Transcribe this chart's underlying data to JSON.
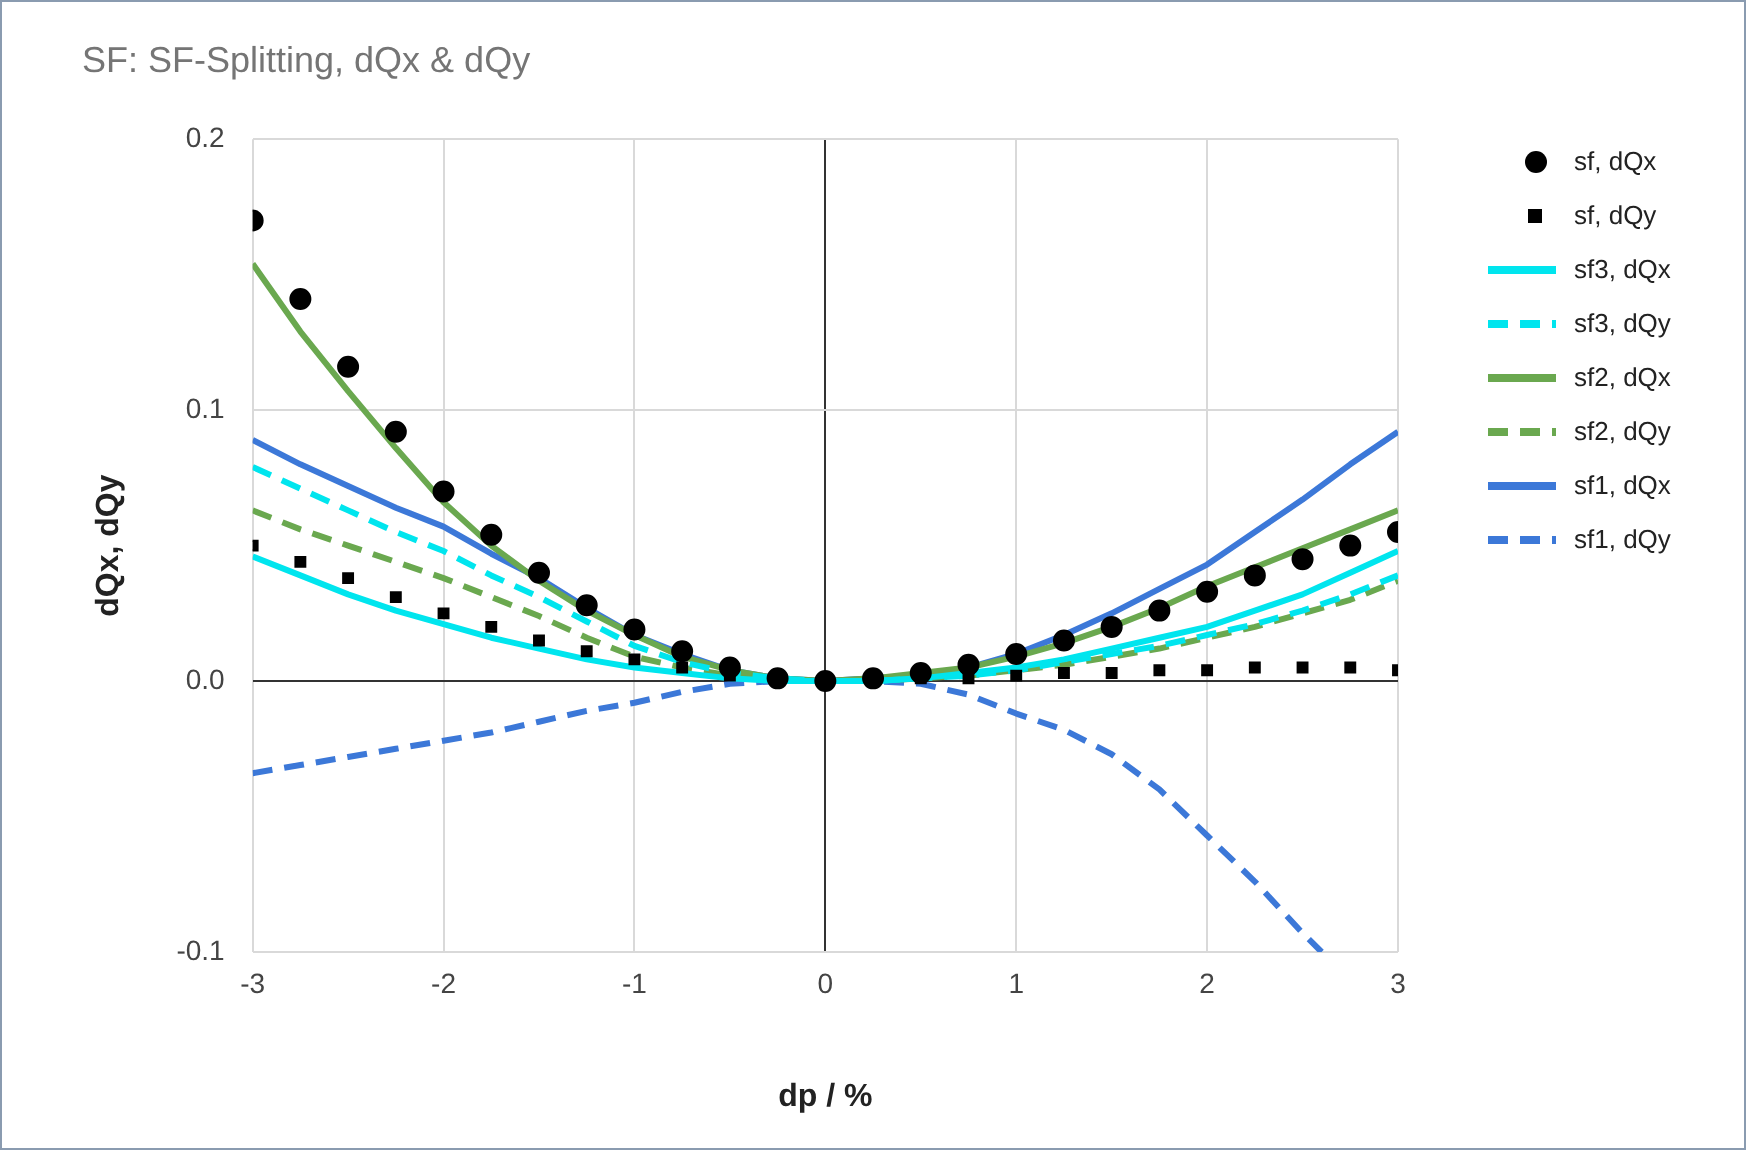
{
  "chart_data": {
    "type": "line",
    "title": "SF: SF-Splitting, dQx & dQy",
    "xlabel": "dp / %",
    "ylabel": "dQx, dQy",
    "x": [
      -3,
      -2.75,
      -2.5,
      -2.25,
      -2,
      -1.75,
      -1.5,
      -1.25,
      -1,
      -0.75,
      -0.5,
      -0.25,
      0,
      0.25,
      0.5,
      0.75,
      1,
      1.25,
      1.5,
      1.75,
      2,
      2.25,
      2.5,
      2.75,
      3
    ],
    "series": [
      {
        "name": "sf, dQx",
        "type": "scatter",
        "marker": "circle",
        "color": "#000000",
        "values": [
          0.17,
          0.141,
          0.116,
          0.092,
          0.07,
          0.054,
          0.04,
          0.028,
          0.019,
          0.011,
          0.005,
          0.001,
          0,
          0.001,
          0.003,
          0.006,
          0.01,
          0.015,
          0.02,
          0.026,
          0.033,
          0.039,
          0.045,
          0.05,
          0.055
        ]
      },
      {
        "name": "sf, dQy",
        "type": "scatter",
        "marker": "square",
        "color": "#000000",
        "values": [
          0.05,
          0.044,
          0.038,
          0.031,
          0.025,
          0.02,
          0.015,
          0.011,
          0.008,
          0.005,
          0.002,
          null,
          null,
          null,
          0.001,
          0.001,
          0.002,
          0.003,
          0.003,
          0.004,
          0.004,
          0.005,
          0.005,
          0.005,
          0.004
        ]
      },
      {
        "name": "sf3, dQx",
        "color": "#00e5ee",
        "line_style": "solid",
        "values": [
          0.046,
          0.039,
          0.032,
          0.026,
          0.021,
          0.016,
          0.012,
          0.008,
          0.005,
          0.003,
          0.001,
          0,
          0,
          0,
          0.001,
          0.003,
          0.005,
          0.008,
          0.012,
          0.016,
          0.02,
          0.026,
          0.032,
          0.04,
          0.048
        ]
      },
      {
        "name": "sf3, dQy",
        "color": "#00e5ee",
        "line_style": "dashed",
        "values": [
          0.079,
          0.071,
          0.063,
          0.055,
          0.048,
          0.039,
          0.031,
          0.022,
          0.013,
          0.007,
          0.003,
          0.001,
          0,
          0,
          0.001,
          0.002,
          0.004,
          0.007,
          0.01,
          0.013,
          0.017,
          0.021,
          0.026,
          0.032,
          0.039
        ]
      },
      {
        "name": "sf2, dQx",
        "color": "#6aa84f",
        "line_style": "solid",
        "values": [
          0.154,
          0.129,
          0.107,
          0.086,
          0.066,
          0.05,
          0.037,
          0.026,
          0.017,
          0.009,
          0.004,
          0.001,
          0,
          0.001,
          0.003,
          0.005,
          0.009,
          0.014,
          0.02,
          0.027,
          0.035,
          0.042,
          0.049,
          0.056,
          0.063
        ]
      },
      {
        "name": "sf2, dQy",
        "color": "#6aa84f",
        "line_style": "dashed",
        "values": [
          0.063,
          0.056,
          0.05,
          0.044,
          0.038,
          0.031,
          0.024,
          0.016,
          0.009,
          0.005,
          0.002,
          0,
          0,
          0,
          0.001,
          0.002,
          0.004,
          0.006,
          0.009,
          0.012,
          0.016,
          0.02,
          0.025,
          0.03,
          0.037
        ]
      },
      {
        "name": "sf1, dQx",
        "color": "#3c78d8",
        "line_style": "solid",
        "values": [
          0.089,
          0.08,
          0.072,
          0.064,
          0.057,
          0.047,
          0.038,
          0.027,
          0.017,
          0.01,
          0.004,
          0.001,
          0,
          0.001,
          0.002,
          0.005,
          0.01,
          0.017,
          0.025,
          0.034,
          0.043,
          0.055,
          0.067,
          0.08,
          0.092
        ]
      },
      {
        "name": "sf1, dQy",
        "color": "#3c78d8",
        "line_style": "dashed",
        "x": [
          -3,
          -2.75,
          -2.5,
          -2.25,
          -2,
          -1.75,
          -1.5,
          -1.25,
          -1,
          -0.75,
          -0.5,
          -0.25,
          0,
          0.25,
          0.5,
          0.75,
          1,
          1.25,
          1.5,
          1.75,
          2,
          2.25,
          2.5,
          2.6
        ],
        "values": [
          -0.034,
          -0.031,
          -0.028,
          -0.025,
          -0.022,
          -0.019,
          -0.015,
          -0.011,
          -0.008,
          -0.004,
          -0.001,
          0,
          0,
          0,
          -0.001,
          -0.005,
          -0.012,
          -0.018,
          -0.027,
          -0.04,
          -0.057,
          -0.074,
          -0.093,
          -0.1
        ]
      }
    ],
    "xlim": [
      -3,
      3
    ],
    "xticks": [
      -3,
      -2,
      -1,
      0,
      1,
      2,
      3
    ],
    "ylim": [
      -0.1,
      0.2
    ],
    "yticks": [
      -0.1,
      {
        "value": 0,
        "label": "0.0"
      },
      0.1,
      0.2
    ],
    "grid": true,
    "legend": "right"
  }
}
